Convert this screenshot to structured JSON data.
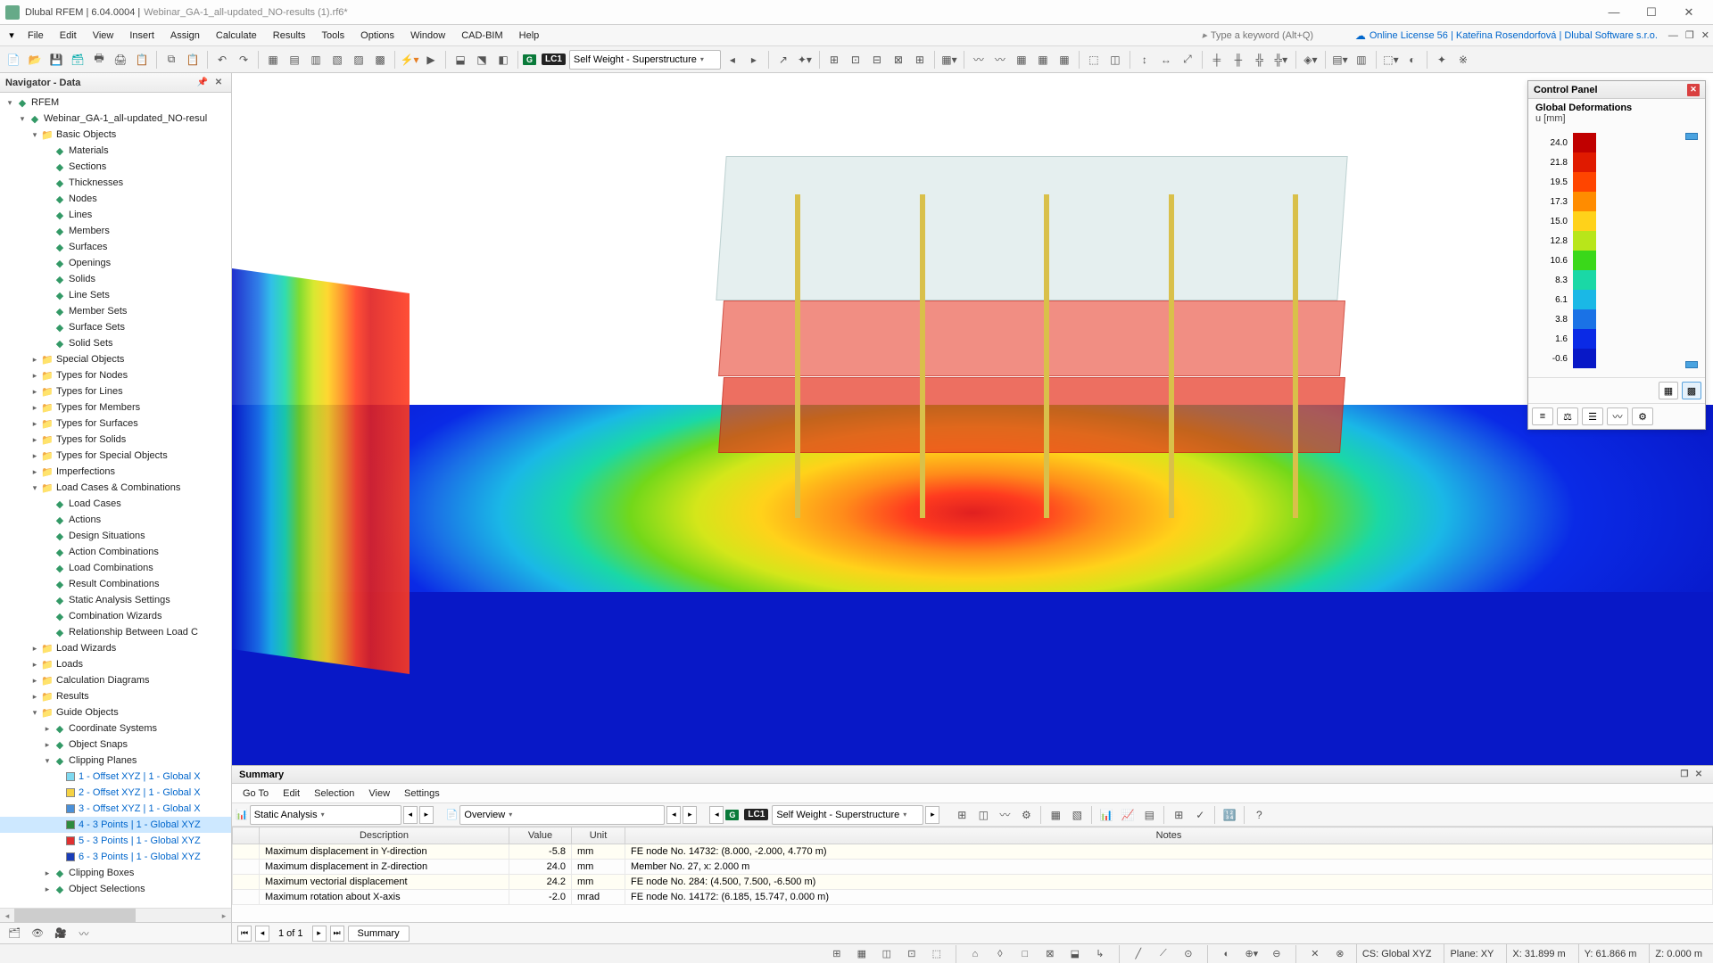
{
  "title": {
    "app": "Dlubal RFEM",
    "ver": "6.04.0004",
    "doc": "Webinar_GA-1_all-updated_NO-results (1).rf6*"
  },
  "win": {
    "min": "—",
    "max": "☐",
    "close": "✕"
  },
  "menu": [
    "File",
    "Edit",
    "View",
    "Insert",
    "Assign",
    "Calculate",
    "Results",
    "Tools",
    "Options",
    "Window",
    "CAD-BIM",
    "Help"
  ],
  "search_placeholder": "Type a keyword (Alt+Q)",
  "license": "Online License 56 | Kateřina Rosendorfová | Dlubal Software s.r.o.",
  "toolbar": {
    "lc_badge": "LC1",
    "lc_name": "Self Weight - Superstructure"
  },
  "nav": {
    "title": "Navigator - Data",
    "root": "RFEM",
    "model": "Webinar_GA-1_all-updated_NO-resul",
    "basic": "Basic Objects",
    "basic_items": [
      "Materials",
      "Sections",
      "Thicknesses",
      "Nodes",
      "Lines",
      "Members",
      "Surfaces",
      "Openings",
      "Solids",
      "Line Sets",
      "Member Sets",
      "Surface Sets",
      "Solid Sets"
    ],
    "groups": [
      "Special Objects",
      "Types for Nodes",
      "Types for Lines",
      "Types for Members",
      "Types for Surfaces",
      "Types for Solids",
      "Types for Special Objects",
      "Imperfections"
    ],
    "lcc": "Load Cases & Combinations",
    "lcc_items": [
      "Load Cases",
      "Actions",
      "Design Situations",
      "Action Combinations",
      "Load Combinations",
      "Result Combinations",
      "Static Analysis Settings",
      "Combination Wizards",
      "Relationship Between Load C"
    ],
    "after": [
      "Load Wizards",
      "Loads",
      "Calculation Diagrams",
      "Results"
    ],
    "guide": "Guide Objects",
    "guide_items": [
      "Coordinate Systems",
      "Object Snaps"
    ],
    "clip": "Clipping Planes",
    "clips": [
      {
        "n": "1 - Offset XYZ | 1 - Global X",
        "c": "#7fd9f0"
      },
      {
        "n": "2 - Offset XYZ | 1 - Global X",
        "c": "#f5d243"
      },
      {
        "n": "3 - Offset XYZ | 1 - Global X",
        "c": "#4a90d9"
      },
      {
        "n": "4 - 3 Points | 1 - Global XYZ",
        "c": "#2e8b3d"
      },
      {
        "n": "5 - 3 Points | 1 - Global XYZ",
        "c": "#e03030"
      },
      {
        "n": "6 - 3 Points | 1 - Global XYZ",
        "c": "#1a3db8"
      }
    ],
    "tail": [
      "Clipping Boxes",
      "Object Selections"
    ]
  },
  "summary": {
    "title": "Summary",
    "menu": [
      "Go To",
      "Edit",
      "Selection",
      "View",
      "Settings"
    ],
    "dd1": "Static Analysis",
    "dd2": "Overview",
    "lc": "LC1",
    "lc_name": "Self Weight - Superstructure",
    "cols": [
      "",
      "Description",
      "Value",
      "Unit",
      "Notes"
    ],
    "rows": [
      [
        "",
        "Maximum displacement in Y-direction",
        "-5.8",
        "mm",
        "FE node No. 14732: (8.000, -2.000, 4.770 m)"
      ],
      [
        "",
        "Maximum displacement in Z-direction",
        "24.0",
        "mm",
        "Member No. 27, x: 2.000 m"
      ],
      [
        "",
        "Maximum vectorial displacement",
        "24.2",
        "mm",
        "FE node No. 284: (4.500, 7.500, -6.500 m)"
      ],
      [
        "",
        "Maximum rotation about X-axis",
        "-2.0",
        "mrad",
        "FE node No. 14172: (6.185, 15.747, 0.000 m)"
      ]
    ],
    "page": "1 of 1",
    "tab": "Summary"
  },
  "cpanel": {
    "title": "Control Panel",
    "sub": "Global Deformations",
    "unit": "u [mm]",
    "legend": [
      {
        "v": "24.0",
        "c": "#c00000"
      },
      {
        "v": "21.8",
        "c": "#e01a00"
      },
      {
        "v": "19.5",
        "c": "#ff4500"
      },
      {
        "v": "17.3",
        "c": "#ff8c00"
      },
      {
        "v": "15.0",
        "c": "#ffd21a"
      },
      {
        "v": "12.8",
        "c": "#b8e61a"
      },
      {
        "v": "10.6",
        "c": "#3ad81a"
      },
      {
        "v": "8.3",
        "c": "#1ad8a6"
      },
      {
        "v": "6.1",
        "c": "#1ab8e6"
      },
      {
        "v": "3.8",
        "c": "#1a72e6"
      },
      {
        "v": "1.6",
        "c": "#0a2ae6"
      },
      {
        "v": "-0.6",
        "c": "#0818c7"
      }
    ]
  },
  "status": {
    "cs": "CS: Global XYZ",
    "plane": "Plane: XY",
    "x": "X: 31.899 m",
    "y": "Y: 61.866 m",
    "z": "Z: 0.000 m"
  }
}
